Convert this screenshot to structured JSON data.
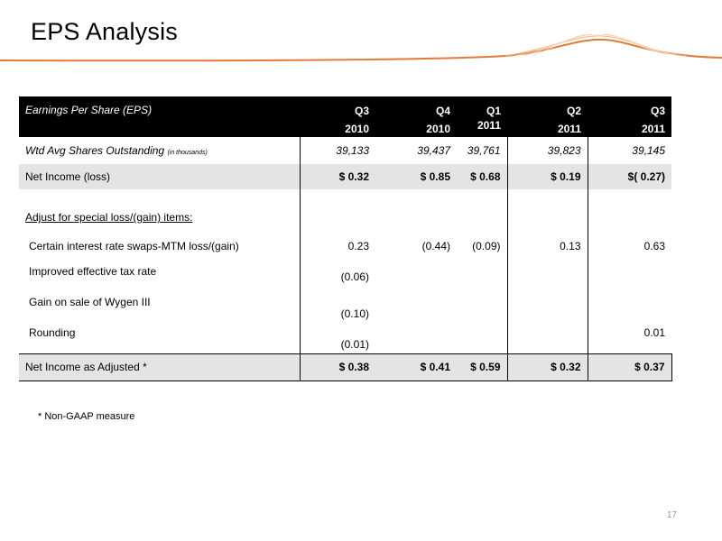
{
  "slide": {
    "title": "EPS Analysis",
    "footnote": "* Non-GAAP measure",
    "page_number": "17",
    "accent_color": "#e07b39"
  },
  "table": {
    "header_label": "Earnings Per Share (EPS)",
    "columns": [
      {
        "quarter": "Q3",
        "year": "2010"
      },
      {
        "quarter": "Q4",
        "year": "2010"
      },
      {
        "quarter": "Q1",
        "year": "2011"
      },
      {
        "quarter": "Q2",
        "year": "2011"
      },
      {
        "quarter": "Q3",
        "year": "2011"
      }
    ],
    "shares_row": {
      "label": "Wtd Avg Shares Outstanding",
      "label_suffix": "(in thousands)",
      "values": [
        "39,133",
        "39,437",
        "39,761",
        "39,823",
        "39,145"
      ]
    },
    "net_income_row": {
      "label": "Net Income (loss)",
      "values": [
        "$ 0.32",
        "$ 0.85",
        "$ 0.68",
        "$ 0.19",
        "$( 0.27)"
      ]
    },
    "adjust_header": "Adjust for special loss/(gain) items:",
    "items": [
      {
        "label": "Certain interest rate swaps-MTM loss/(gain)",
        "values": [
          "0.23",
          "(0.44)",
          "(0.09)",
          "0.13",
          "0.63"
        ]
      },
      {
        "label": "Improved effective tax rate",
        "values": [
          "(0.06)",
          "",
          "",
          "",
          ""
        ]
      },
      {
        "label": "Gain on sale of Wygen III",
        "values": [
          "(0.10)",
          "",
          "",
          "",
          ""
        ]
      },
      {
        "label": "Rounding",
        "values": [
          "(0.01)",
          "",
          "",
          "",
          "0.01"
        ]
      }
    ],
    "adjusted_row": {
      "label": "Net Income as Adjusted *",
      "values": [
        "$ 0.38",
        "$ 0.41",
        "$ 0.59",
        "$ 0.32",
        "$ 0.37"
      ]
    }
  }
}
